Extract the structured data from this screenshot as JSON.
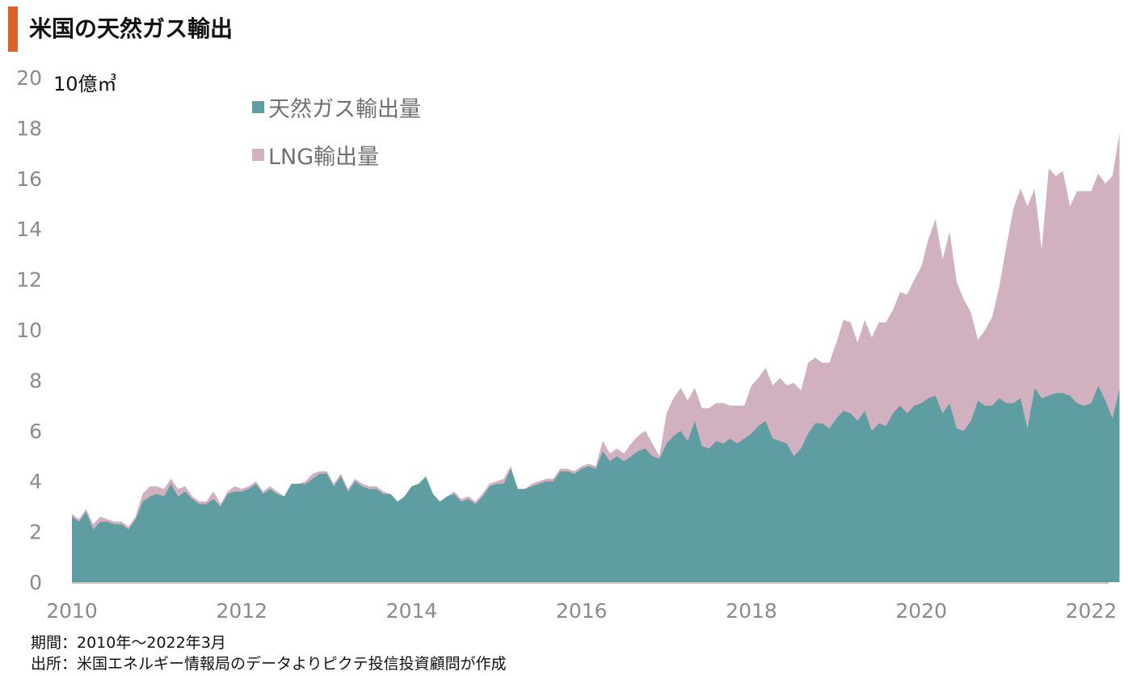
{
  "title": "米国の天然ガス輸出",
  "colors": {
    "accent": "#d9622b",
    "pipeline": "#5e9ea2",
    "lng": "#d1b1c0",
    "axis": "#c8c8c8"
  },
  "footnotes": {
    "period": "期間：2010年～2022年3月",
    "source": "出所：米国エネルギー情報局のデータよりピクテ投信投資顧問が作成"
  },
  "chart_data": {
    "type": "area",
    "stacked": true,
    "title": "米国の天然ガス輸出",
    "unit_label": "10億㎥",
    "ylim": [
      0,
      20
    ],
    "yticks": [
      "0",
      "2",
      "4",
      "6",
      "8",
      "10",
      "12",
      "14",
      "16",
      "18",
      "20"
    ],
    "xticks": [
      "2010",
      "2012",
      "2014",
      "2016",
      "2018",
      "2020",
      "2022"
    ],
    "x_range": [
      "2010-01",
      "2022-03"
    ],
    "legend_position": "top-left",
    "series": [
      {
        "name": "天然ガス輸出量",
        "values": [
          2.6,
          2.4,
          2.8,
          2.1,
          2.4,
          2.4,
          2.3,
          2.3,
          2.1,
          2.5,
          3.2,
          3.4,
          3.5,
          3.4,
          3.9,
          3.4,
          3.6,
          3.3,
          3.1,
          3.1,
          3.3,
          3.0,
          3.5,
          3.6,
          3.6,
          3.7,
          3.9,
          3.5,
          3.7,
          3.5,
          3.4,
          3.9,
          3.9,
          3.9,
          4.1,
          4.3,
          4.3,
          3.8,
          4.2,
          3.6,
          4.0,
          3.8,
          3.7,
          3.7,
          3.5,
          3.5,
          3.2,
          3.4,
          3.8,
          3.9,
          4.2,
          3.5,
          3.2,
          3.4,
          3.5,
          3.2,
          3.3,
          3.1,
          3.4,
          3.8,
          3.9,
          3.9,
          4.5,
          3.7,
          3.7,
          3.8,
          3.9,
          4.0,
          4.0,
          4.4,
          4.4,
          4.3,
          4.5,
          4.6,
          4.5,
          5.2,
          4.8,
          5.0,
          4.8,
          5.0,
          5.2,
          5.3,
          5.0,
          4.9,
          5.5,
          5.8,
          6.0,
          5.6,
          6.4,
          5.4,
          5.3,
          5.6,
          5.5,
          5.7,
          5.5,
          5.7,
          5.9,
          6.2,
          6.4,
          5.7,
          5.6,
          5.5,
          5.0,
          5.3,
          5.9,
          6.3,
          6.3,
          6.1,
          6.5,
          6.8,
          6.7,
          6.4,
          6.8,
          6.0,
          6.3,
          6.2,
          6.7,
          7.0,
          6.7,
          7.0,
          7.1,
          7.3,
          7.4,
          6.7,
          7.1,
          6.1,
          6.0,
          6.4,
          7.2,
          7.0,
          7.0,
          7.3,
          7.1,
          7.1,
          7.3,
          6.1,
          7.7,
          7.3,
          7.4,
          7.5,
          7.5,
          7.4,
          7.1,
          7.0,
          7.1,
          7.8,
          7.2,
          6.5,
          7.7
        ],
        "color": "#5e9ea2"
      },
      {
        "name": "LNG輸出量",
        "values": [
          0.1,
          0.1,
          0.1,
          0.2,
          0.2,
          0.1,
          0.1,
          0.1,
          0.1,
          0.1,
          0.3,
          0.4,
          0.3,
          0.3,
          0.2,
          0.3,
          0.2,
          0.1,
          0.1,
          0.1,
          0.3,
          0.1,
          0.1,
          0.2,
          0.1,
          0.1,
          0.1,
          0.1,
          0.1,
          0.1,
          0.0,
          0.0,
          0.0,
          0.1,
          0.2,
          0.1,
          0.1,
          0.1,
          0.1,
          0.1,
          0.1,
          0.1,
          0.1,
          0.1,
          0.1,
          0.0,
          0.0,
          0.0,
          0.0,
          0.0,
          0.0,
          0.0,
          0.0,
          0.0,
          0.1,
          0.1,
          0.1,
          0.1,
          0.1,
          0.1,
          0.1,
          0.2,
          0.1,
          0.0,
          0.0,
          0.1,
          0.1,
          0.1,
          0.1,
          0.1,
          0.1,
          0.1,
          0.1,
          0.1,
          0.1,
          0.4,
          0.3,
          0.3,
          0.3,
          0.5,
          0.6,
          0.7,
          0.5,
          0.1,
          1.2,
          1.5,
          1.7,
          1.6,
          1.3,
          1.5,
          1.6,
          1.5,
          1.6,
          1.3,
          1.5,
          1.3,
          1.9,
          1.9,
          2.1,
          2.1,
          2.5,
          2.3,
          2.9,
          2.3,
          2.8,
          2.6,
          2.4,
          2.6,
          3.0,
          3.6,
          3.6,
          3.1,
          3.6,
          3.7,
          4.0,
          4.1,
          4.1,
          4.5,
          4.7,
          5.0,
          5.4,
          6.3,
          7.0,
          6.1,
          6.8,
          5.8,
          5.2,
          4.3,
          2.4,
          3.0,
          3.5,
          4.4,
          6.2,
          7.7,
          8.3,
          8.8,
          7.9,
          5.9,
          9.0,
          8.6,
          8.8,
          7.5,
          8.4,
          8.5,
          8.4,
          8.4,
          8.6,
          9.6,
          10.1,
          8.9,
          10.4
        ],
        "color": "#d1b1c0"
      }
    ]
  }
}
